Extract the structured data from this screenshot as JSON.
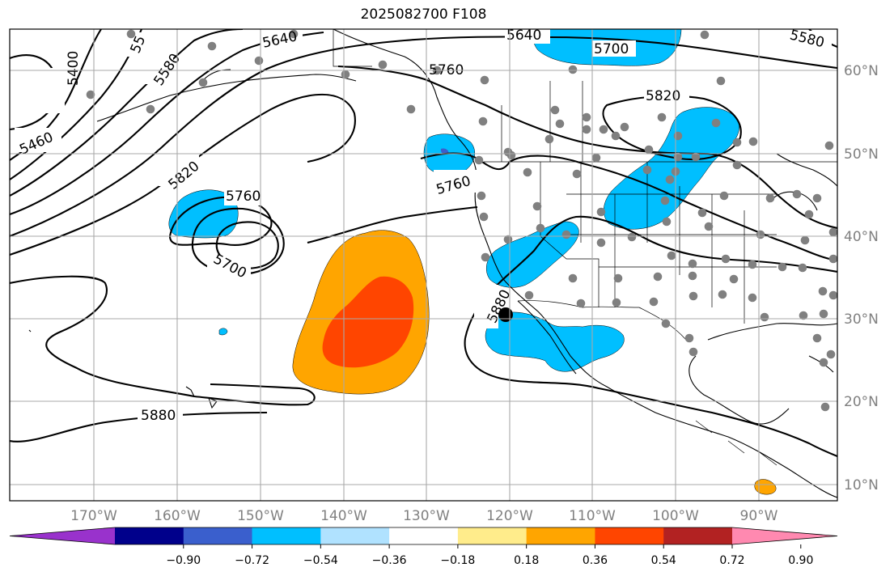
{
  "title": "2025082700 F108",
  "map": {
    "lon_labels": [
      "170°W",
      "160°W",
      "150°W",
      "140°W",
      "130°W",
      "120°W",
      "110°W",
      "100°W",
      "90°W"
    ],
    "lat_labels": [
      "60°N",
      "50°N",
      "40°N",
      "30°N",
      "20°N",
      "10°N"
    ],
    "contour_labels": [
      "5640",
      "5640",
      "5700",
      "5760",
      "5820",
      "5400",
      "5460",
      "5580",
      "5820",
      "5760",
      "5760",
      "5700",
      "5880",
      "5880",
      "55",
      "5580"
    ],
    "marker": {
      "name": "point",
      "color": "#000000"
    }
  },
  "colorbar": {
    "colors": [
      "#9932cc",
      "#00008b",
      "#3a5fcd",
      "#00bfff",
      "#b0e2ff",
      "#ffffff",
      "#ffec8b",
      "#ffa500",
      "#ff4500",
      "#b22222",
      "#ff89b0"
    ],
    "ticks": [
      "−0.90",
      "−0.72",
      "−0.54",
      "−0.36",
      "−0.18",
      "0.18",
      "0.36",
      "0.54",
      "0.72",
      "0.90"
    ]
  }
}
